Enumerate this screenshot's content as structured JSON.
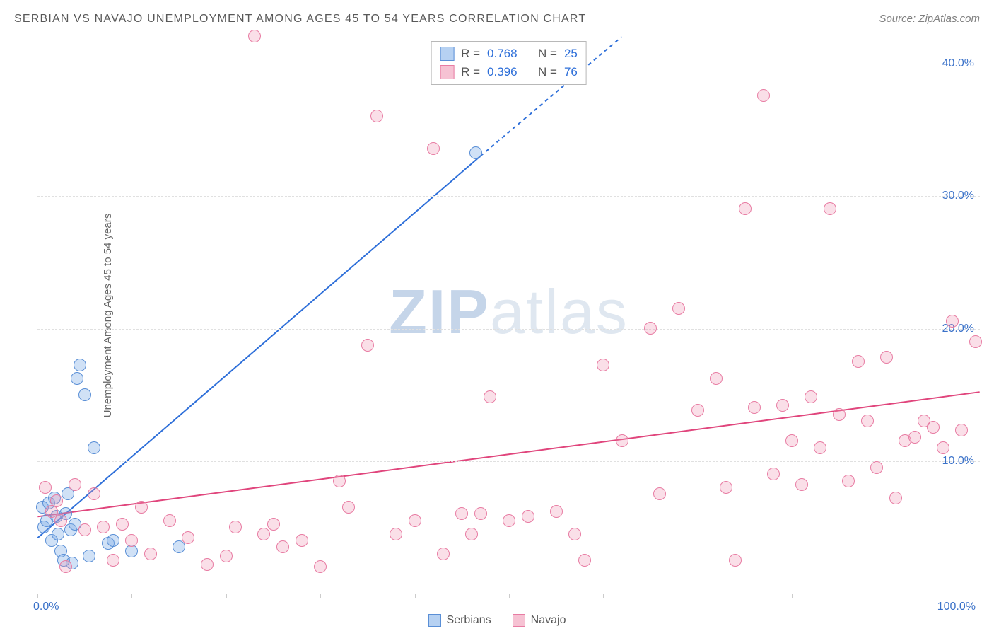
{
  "title": "SERBIAN VS NAVAJO UNEMPLOYMENT AMONG AGES 45 TO 54 YEARS CORRELATION CHART",
  "source": "Source: ZipAtlas.com",
  "ylabel": "Unemployment Among Ages 45 to 54 years",
  "watermark_a": "ZIP",
  "watermark_b": "atlas",
  "chart": {
    "type": "scatter-with-regression",
    "background_color": "#ffffff",
    "grid_color": "#e0e0e0",
    "axis_color": "#cccccc",
    "tick_color": "#3b72c9",
    "tick_fontsize": 16,
    "title_fontsize": 16,
    "title_color": "#595959",
    "ylabel_fontsize": 15,
    "ylabel_color": "#666666",
    "xlim": [
      0,
      100
    ],
    "ylim": [
      0,
      42
    ],
    "xticks": [
      0,
      10,
      20,
      30,
      40,
      50,
      60,
      70,
      80,
      90,
      100
    ],
    "xtick_labels": {
      "0": "0.0%",
      "100": "100.0%"
    },
    "yticks": [
      10,
      20,
      30,
      40
    ],
    "ytick_labels": {
      "10": "10.0%",
      "20": "20.0%",
      "30": "30.0%",
      "40": "40.0%"
    },
    "point_radius": 9,
    "series": [
      {
        "name": "Serbians",
        "legend_label": "Serbians",
        "color_fill": "rgba(120,170,230,0.35)",
        "color_stroke": "#5a8fd6",
        "r": "0.768",
        "n": "25",
        "regression": {
          "x1": 0,
          "y1": 4.2,
          "x2": 47,
          "y2": 33.0,
          "x3_dash": 62,
          "y3_dash": 42,
          "stroke": "#2e6fd9",
          "width": 2
        },
        "points": [
          [
            0.5,
            6.5
          ],
          [
            0.7,
            5.0
          ],
          [
            1.0,
            5.5
          ],
          [
            1.2,
            6.8
          ],
          [
            1.5,
            4.0
          ],
          [
            1.8,
            7.2
          ],
          [
            2.0,
            5.8
          ],
          [
            2.2,
            4.5
          ],
          [
            2.5,
            3.2
          ],
          [
            2.8,
            2.5
          ],
          [
            3.0,
            6.0
          ],
          [
            3.2,
            7.5
          ],
          [
            3.5,
            4.8
          ],
          [
            3.7,
            2.3
          ],
          [
            4.0,
            5.2
          ],
          [
            4.2,
            16.2
          ],
          [
            4.5,
            17.2
          ],
          [
            5.0,
            15.0
          ],
          [
            5.5,
            2.8
          ],
          [
            6.0,
            11.0
          ],
          [
            7.5,
            3.8
          ],
          [
            8.0,
            4.0
          ],
          [
            10.0,
            3.2
          ],
          [
            15.0,
            3.5
          ],
          [
            46.5,
            33.2
          ]
        ]
      },
      {
        "name": "Navajo",
        "legend_label": "Navajo",
        "color_fill": "rgba(240,150,180,0.30)",
        "color_stroke": "#e87ca3",
        "r": "0.396",
        "n": "76",
        "regression": {
          "x1": 0,
          "y1": 5.8,
          "x2": 100,
          "y2": 15.2,
          "stroke": "#e0457c",
          "width": 2
        },
        "points": [
          [
            0.8,
            8.0
          ],
          [
            1.5,
            6.2
          ],
          [
            2.0,
            7.0
          ],
          [
            2.5,
            5.5
          ],
          [
            3.0,
            2.0
          ],
          [
            4.0,
            8.2
          ],
          [
            5.0,
            4.8
          ],
          [
            6.0,
            7.5
          ],
          [
            7.0,
            5.0
          ],
          [
            8.0,
            2.5
          ],
          [
            9.0,
            5.2
          ],
          [
            10.0,
            4.0
          ],
          [
            11.0,
            6.5
          ],
          [
            12.0,
            3.0
          ],
          [
            14.0,
            5.5
          ],
          [
            16.0,
            4.2
          ],
          [
            18.0,
            2.2
          ],
          [
            20.0,
            2.8
          ],
          [
            21.0,
            5.0
          ],
          [
            23.0,
            42.0
          ],
          [
            24.0,
            4.5
          ],
          [
            25.0,
            5.2
          ],
          [
            26.0,
            3.5
          ],
          [
            28.0,
            4.0
          ],
          [
            30.0,
            2.0
          ],
          [
            32.0,
            8.5
          ],
          [
            33.0,
            6.5
          ],
          [
            35.0,
            18.7
          ],
          [
            36.0,
            36.0
          ],
          [
            38.0,
            4.5
          ],
          [
            40.0,
            5.5
          ],
          [
            42.0,
            33.5
          ],
          [
            43.0,
            3.0
          ],
          [
            45.0,
            6.0
          ],
          [
            46.0,
            4.5
          ],
          [
            47.0,
            6.0
          ],
          [
            48.0,
            14.8
          ],
          [
            50.0,
            5.5
          ],
          [
            52.0,
            5.8
          ],
          [
            55.0,
            6.2
          ],
          [
            57.0,
            4.5
          ],
          [
            58.0,
            2.5
          ],
          [
            60.0,
            17.2
          ],
          [
            62.0,
            11.5
          ],
          [
            65.0,
            20.0
          ],
          [
            66.0,
            7.5
          ],
          [
            68.0,
            21.5
          ],
          [
            70.0,
            13.8
          ],
          [
            72.0,
            16.2
          ],
          [
            73.0,
            8.0
          ],
          [
            74.0,
            2.5
          ],
          [
            75.0,
            29.0
          ],
          [
            76.0,
            14.0
          ],
          [
            77.0,
            37.5
          ],
          [
            78.0,
            9.0
          ],
          [
            79.0,
            14.2
          ],
          [
            80.0,
            11.5
          ],
          [
            81.0,
            8.2
          ],
          [
            82.0,
            14.8
          ],
          [
            83.0,
            11.0
          ],
          [
            84.0,
            29.0
          ],
          [
            85.0,
            13.5
          ],
          [
            86.0,
            8.5
          ],
          [
            87.0,
            17.5
          ],
          [
            88.0,
            13.0
          ],
          [
            89.0,
            9.5
          ],
          [
            90.0,
            17.8
          ],
          [
            91.0,
            7.2
          ],
          [
            92.0,
            11.5
          ],
          [
            93.0,
            11.8
          ],
          [
            94.0,
            13.0
          ],
          [
            95.0,
            12.5
          ],
          [
            96.0,
            11.0
          ],
          [
            97.0,
            20.5
          ],
          [
            98.0,
            12.3
          ],
          [
            99.5,
            19.0
          ]
        ]
      }
    ]
  },
  "legend_top": {
    "r_label": "R =",
    "n_label": "N ="
  },
  "colors": {
    "blue_fill": "#b6d1f2",
    "blue_stroke": "#5a8fd6",
    "pink_fill": "#f6c2d3",
    "pink_stroke": "#e87ca3",
    "value_text": "#2e6fd9"
  }
}
